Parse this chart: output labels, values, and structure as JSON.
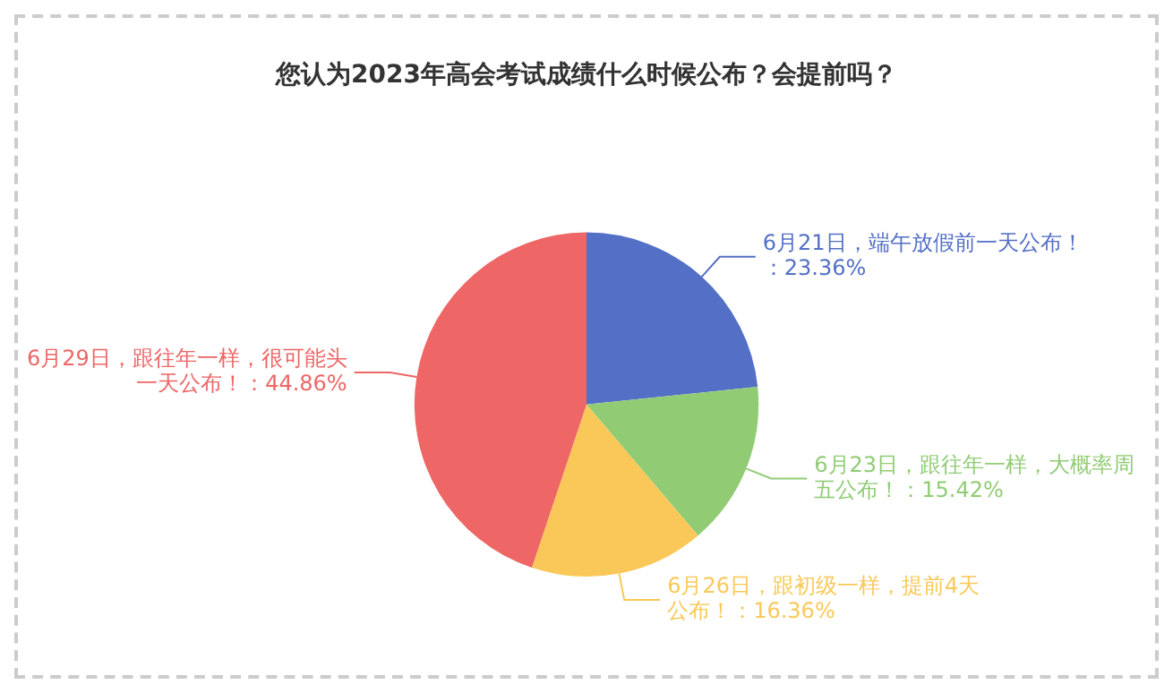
{
  "chart_data": {
    "type": "pie",
    "title": "您认为2023年高会考试成绩什么时候公布？会提前吗？",
    "categories": [
      "6月21日，端午放假前一天公布！",
      "6月23日，跟往年一样，大概率周五公布！",
      "6月26日，跟初级一样，提前4天公布！",
      "6月29日，跟往年一样，很可能头一天公布！"
    ],
    "values": [
      23.36,
      15.42,
      16.36,
      44.86
    ],
    "colors": [
      "#5470c6",
      "#91cc75",
      "#fac858",
      "#ee6666"
    ],
    "value_labels": [
      "：23.36%",
      "：15.42%",
      "：16.36%",
      "：44.86%"
    ],
    "legend": false
  }
}
